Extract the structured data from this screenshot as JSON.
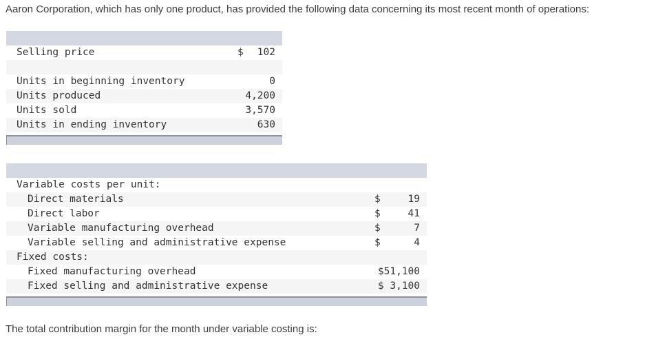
{
  "page": {
    "intro_text": "Aaron Corporation, which has only one product, has provided the following data concerning its most recent month of operations:",
    "question_text": "The total contribution margin for the month under variable costing is:"
  },
  "colors": {
    "table_header_band": "#d4d8e2",
    "row_stripe": "#f5f5f5",
    "scrollbar_track": "#ccd1dd",
    "scrollbar_border": "#90909a",
    "text": "#333333"
  },
  "tables": {
    "operations": {
      "rows": [
        {
          "label": "Selling price",
          "indent": 0,
          "currency": "$",
          "value": "102"
        },
        {
          "label": "",
          "indent": 0,
          "currency": "",
          "value": ""
        },
        {
          "label": "Units in beginning inventory",
          "indent": 0,
          "currency": "",
          "value": "0"
        },
        {
          "label": "Units produced",
          "indent": 0,
          "currency": "",
          "value": "4,200"
        },
        {
          "label": "Units sold",
          "indent": 0,
          "currency": "",
          "value": "3,570"
        },
        {
          "label": "Units in ending inventory",
          "indent": 0,
          "currency": "",
          "value": "630"
        }
      ]
    },
    "costs": {
      "rows": [
        {
          "label": "Variable costs per unit:",
          "indent": 0,
          "currency": "",
          "value": ""
        },
        {
          "label": "Direct materials",
          "indent": 1,
          "currency": "$",
          "value": "19"
        },
        {
          "label": "Direct labor",
          "indent": 1,
          "currency": "$",
          "value": "41"
        },
        {
          "label": "Variable manufacturing overhead",
          "indent": 1,
          "currency": "$",
          "value": "7"
        },
        {
          "label": "Variable selling and administrative expense",
          "indent": 1,
          "currency": "$",
          "value": "4"
        },
        {
          "label": "Fixed costs:",
          "indent": 0,
          "currency": "",
          "value": ""
        },
        {
          "label": "Fixed manufacturing overhead",
          "indent": 1,
          "currency": "",
          "value": "$51,100"
        },
        {
          "label": "Fixed selling and administrative expense",
          "indent": 1,
          "currency": "",
          "value": "$ 3,100"
        }
      ]
    }
  }
}
